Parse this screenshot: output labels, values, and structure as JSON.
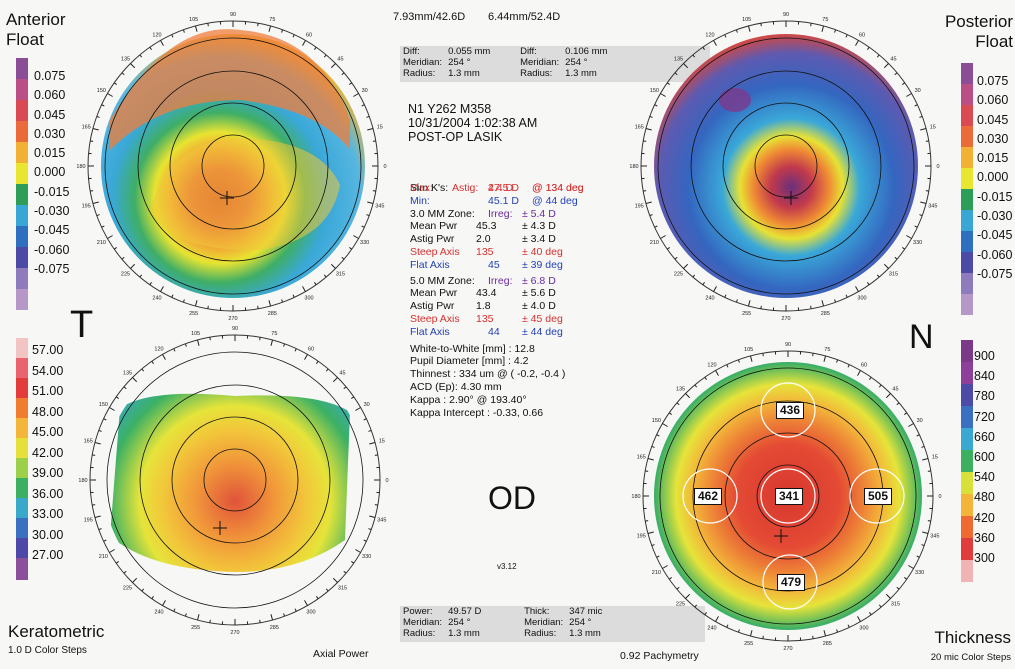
{
  "top_left": {
    "line1": "7.93mm/42.6D",
    "line2": "6.44mm/52.4D"
  },
  "titles": {
    "anterior": [
      "Anterior",
      "Float"
    ],
    "posterior": [
      "Posterior",
      "Float"
    ],
    "keratometric": "Keratometric",
    "keratometric_sub": "1.0 D Color Steps",
    "axial_power": "Axial Power",
    "thickness": "Thickness",
    "thickness_sub": "20 mic Color Steps",
    "pachymetry": "0.92 Pachymetry"
  },
  "side_letters": {
    "temporal": "T",
    "nasal": "N",
    "eye": "OD"
  },
  "version": "v3.12",
  "diff_box": {
    "col1": {
      "diff_label": "Diff:",
      "diff": "0.055 mm",
      "mer_label": "Meridian:",
      "mer": "254 °",
      "rad_label": "Radius:",
      "rad": "1.3 mm"
    },
    "col2": {
      "diff_label": "Diff:",
      "diff": "0.106 mm",
      "mer_label": "Meridian:",
      "mer": "254 °",
      "rad_label": "Radius:",
      "rad": "1.3 mm"
    }
  },
  "bottom_box": {
    "col1": {
      "a_label": "Power:",
      "a": "49.57 D",
      "mer_label": "Meridian:",
      "mer": "254 °",
      "rad_label": "Radius:",
      "rad": "1.3 mm"
    },
    "col2": {
      "a_label": "Thick:",
      "a": "347 mic",
      "mer_label": "Meridian:",
      "mer": "254 °",
      "rad_label": "Radius:",
      "rad": "1.3 mm"
    }
  },
  "patient": {
    "id": "N1 Y262 M358",
    "datetime": "10/31/2004 1:02:38 AM",
    "exam": "POST-OP LASIK"
  },
  "simk": {
    "head": "Sim K's:",
    "astig_l": "Astig:",
    "astig": "2.4 D",
    "astig_ax": "@ 134 deg",
    "max_l": "Max:",
    "max": "47.5 D",
    "max_ax": "@ 134 deg",
    "min_l": "Min:",
    "min": "45.1 D",
    "min_ax": "@ 44 deg"
  },
  "zone3": {
    "head": "3.0 MM Zone:",
    "irreg_l": "Irreg:",
    "irreg": "± 5.4 D",
    "mp_l": "Mean Pwr",
    "mp": "45.3",
    "mp_sd": "± 4.3 D",
    "ap_l": "Astig Pwr",
    "ap": "2.0",
    "ap_sd": "± 3.4 D",
    "sa_l": "Steep Axis",
    "sa": "135",
    "sa_sd": "± 40 deg",
    "fa_l": "Flat Axis",
    "fa": "45",
    "fa_sd": "± 39 deg"
  },
  "zone5": {
    "head": "5.0 MM Zone:",
    "irreg_l": "Irreg:",
    "irreg": "± 6.8 D",
    "mp_l": "Mean Pwr",
    "mp": "43.4",
    "mp_sd": "± 5.6 D",
    "ap_l": "Astig Pwr",
    "ap": "1.8",
    "ap_sd": "± 4.0 D",
    "sa_l": "Steep Axis",
    "sa": "135",
    "sa_sd": "± 45 deg",
    "fa_l": "Flat Axis",
    "fa": "44",
    "fa_sd": "± 44 deg"
  },
  "misc": [
    "White-to-White [mm] : 12.8",
    "Pupil Diameter [mm] : 4.2",
    "Thinnest : 334 um @ ( -0.2, -0.4 )",
    "ACD (Ep): 4.30 mm",
    "Kappa : 2.90° @ 193.40°",
    "Kappa Intercept : -0.33, 0.66"
  ],
  "float_scale": [
    "0.075",
    "0.060",
    "0.045",
    "0.030",
    "0.015",
    "0.000",
    "-0.015",
    "-0.030",
    "-0.045",
    "-0.060",
    "-0.075"
  ],
  "kerato_scale": [
    "57.00",
    "54.00",
    "51.00",
    "48.00",
    "45.00",
    "42.00",
    "39.00",
    "36.00",
    "33.00",
    "30.00",
    "27.00"
  ],
  "thick_scale": [
    "900",
    "840",
    "780",
    "720",
    "660",
    "600",
    "540",
    "480",
    "420",
    "360",
    "300"
  ],
  "pachy_values": {
    "top": "436",
    "left": "462",
    "center": "341",
    "right": "505",
    "bottom": "479"
  },
  "axis_ticks": [
    "90",
    "75",
    "60",
    "45",
    "30",
    "15",
    "0",
    "345",
    "330",
    "315",
    "300",
    "285",
    "270",
    "255",
    "240",
    "225",
    "210",
    "195",
    "180",
    "165",
    "150",
    "135",
    "120",
    "105"
  ]
}
